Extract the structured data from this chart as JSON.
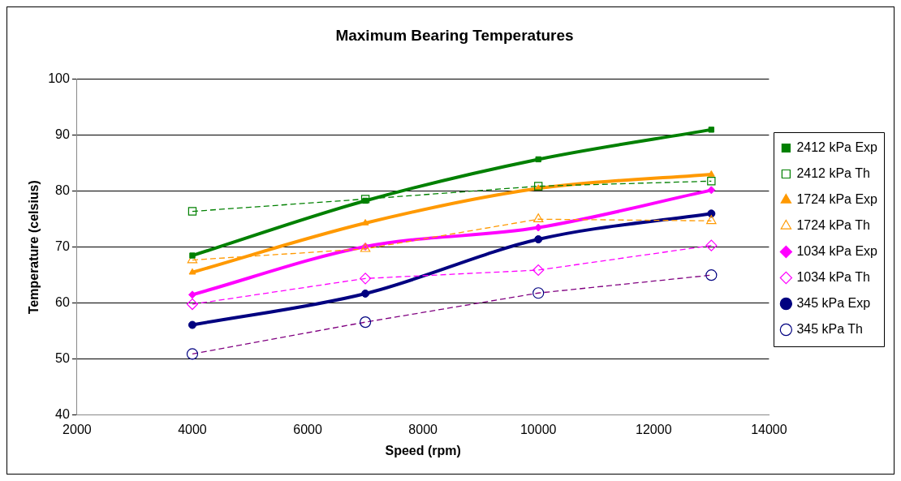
{
  "chart_data": {
    "type": "line",
    "title": "Maximum Bearing Temperatures",
    "xlabel": "Speed (rpm)",
    "ylabel": "Temperature (celsius)",
    "x": [
      4000,
      7000,
      10000,
      13000
    ],
    "xlim": [
      2000,
      14000
    ],
    "xticks": [
      2000,
      4000,
      6000,
      8000,
      10000,
      12000,
      14000
    ],
    "ylim": [
      40,
      100
    ],
    "yticks": [
      40,
      50,
      60,
      70,
      80,
      90,
      100
    ],
    "grid": "y",
    "legend": "right",
    "series": [
      {
        "name": "2412 kPa Exp",
        "color": "#008000",
        "marker": "square",
        "line_style": "solid",
        "values": [
          68.5,
          78.3,
          85.7,
          91
        ]
      },
      {
        "name": "2412 kPa Th",
        "color": "#008000",
        "marker": "square",
        "line_style": "dashed",
        "values": [
          76.4,
          78.6,
          80.9,
          81.8
        ]
      },
      {
        "name": "1724 kPa Exp",
        "color": "#ff9900",
        "marker": "triangle",
        "line_style": "solid",
        "values": [
          65.5,
          74.3,
          80.5,
          83
        ]
      },
      {
        "name": "1724 kPa Th",
        "color": "#ff9900",
        "marker": "triangle",
        "line_style": "dashed",
        "values": [
          67.7,
          69.7,
          75,
          74.7
        ]
      },
      {
        "name": "1034 kPa Exp",
        "color": "#ff00ff",
        "marker": "diamond",
        "line_style": "solid",
        "values": [
          61.5,
          70.1,
          73.5,
          80.2
        ]
      },
      {
        "name": "1034 kPa Th",
        "color": "#ff00ff",
        "marker": "diamond",
        "line_style": "dashed",
        "values": [
          59.8,
          64.4,
          65.9,
          70.3
        ]
      },
      {
        "name": "345 kPa Exp",
        "color": "#000080",
        "marker": "circle",
        "line_style": "solid",
        "values": [
          56.1,
          61.7,
          71.4,
          76
        ]
      },
      {
        "name": "345 kPa Th",
        "color": "#800080",
        "marker": "circle",
        "line_style": "dashed",
        "values": [
          50.9,
          56.6,
          61.8,
          65
        ]
      }
    ]
  }
}
